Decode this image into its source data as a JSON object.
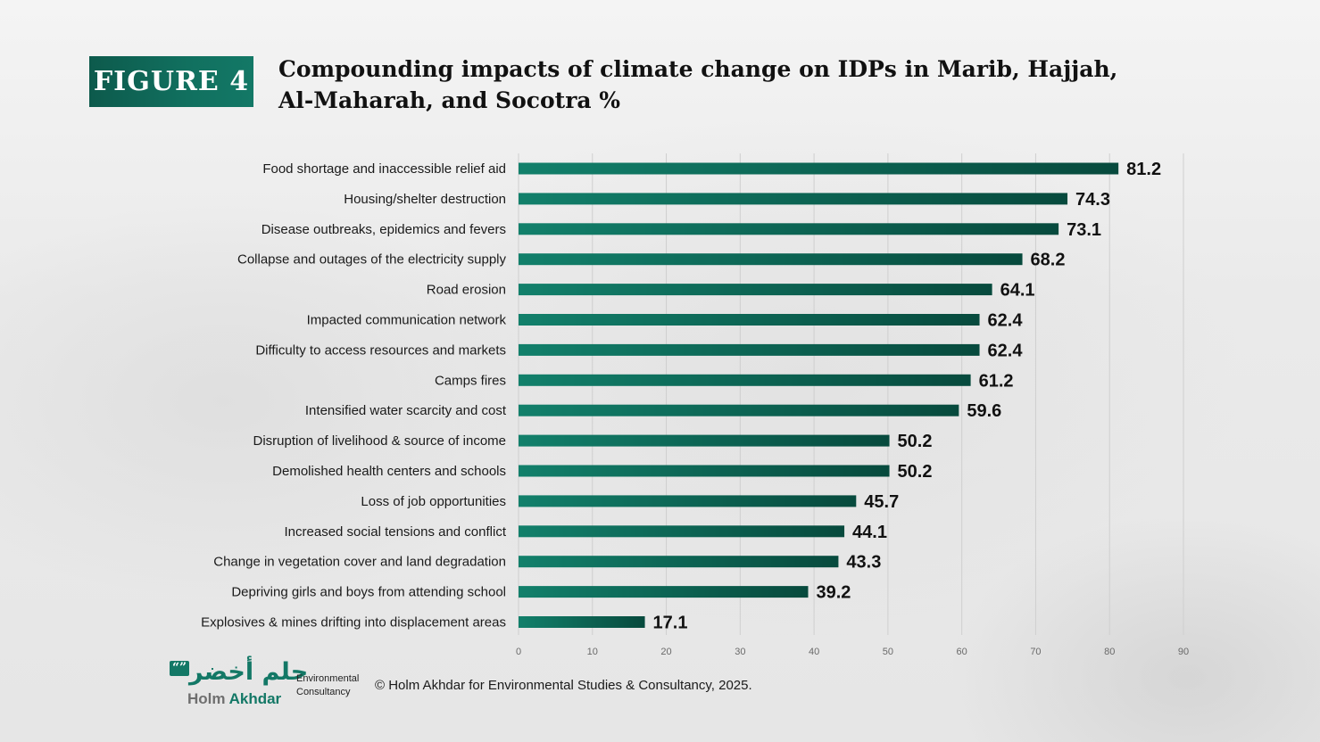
{
  "figure": {
    "badge": "FIGURE  4",
    "title": "Compounding impacts of climate change on IDPs in Marib, Hajjah, Al-Maharah, and Socotra %"
  },
  "chart_data": {
    "type": "bar",
    "orientation": "horizontal",
    "title": "Compounding impacts of climate change on IDPs in Marib, Hajjah, Al-Maharah, and Socotra %",
    "xlabel": "",
    "ylabel": "",
    "categories": [
      "Food shortage and inaccessible relief aid",
      "Housing/shelter destruction",
      "Disease outbreaks, epidemics and fevers",
      "Collapse and outages of the electricity supply",
      "Road erosion",
      "Impacted communication network",
      "Difficulty to access resources and markets",
      "Camps fires",
      "Intensified water scarcity and cost",
      "Disruption of livelihood & source of income",
      "Demolished health centers and schools",
      "Loss of job opportunities",
      "Increased social tensions and conflict",
      "Change in vegetation cover and land degradation",
      "Depriving girls and boys from attending school",
      "Explosives & mines drifting into displacement areas"
    ],
    "values": [
      81.2,
      74.3,
      73.1,
      68.2,
      64.1,
      62.4,
      62.4,
      61.2,
      59.6,
      50.2,
      50.2,
      45.7,
      44.1,
      43.3,
      39.2,
      17.1
    ],
    "value_labels": [
      "81.2",
      "74.3",
      "73.1",
      "68.2",
      "64.1",
      "62.4",
      "62.4",
      "61.2",
      "59.6",
      "50.2",
      "50.2",
      "45.7",
      "44.1",
      "43.3",
      "39.2",
      "17.1"
    ],
    "xlim": [
      0,
      90
    ],
    "x_ticks": [
      0,
      10,
      20,
      30,
      40,
      50,
      60,
      70,
      80,
      90
    ],
    "x_tick_labels": [
      "0",
      "10",
      "20",
      "30",
      "40",
      "50",
      "60",
      "70",
      "80",
      "90"
    ],
    "grid": "vertical",
    "legend": "none",
    "colors": {
      "bar_start": "#12806b",
      "bar_end": "#074a3d"
    }
  },
  "footer": {
    "logo_arabic": "حلم أخضر",
    "logo_quote": "“”",
    "logo_name_part1": "Holm",
    "logo_name_part2": "Akhdar",
    "logo_sub_line1": "Environmental",
    "logo_sub_line2": "Consultancy",
    "copyright": "© Holm Akhdar for Environmental Studies & Consultancy, 2025."
  }
}
